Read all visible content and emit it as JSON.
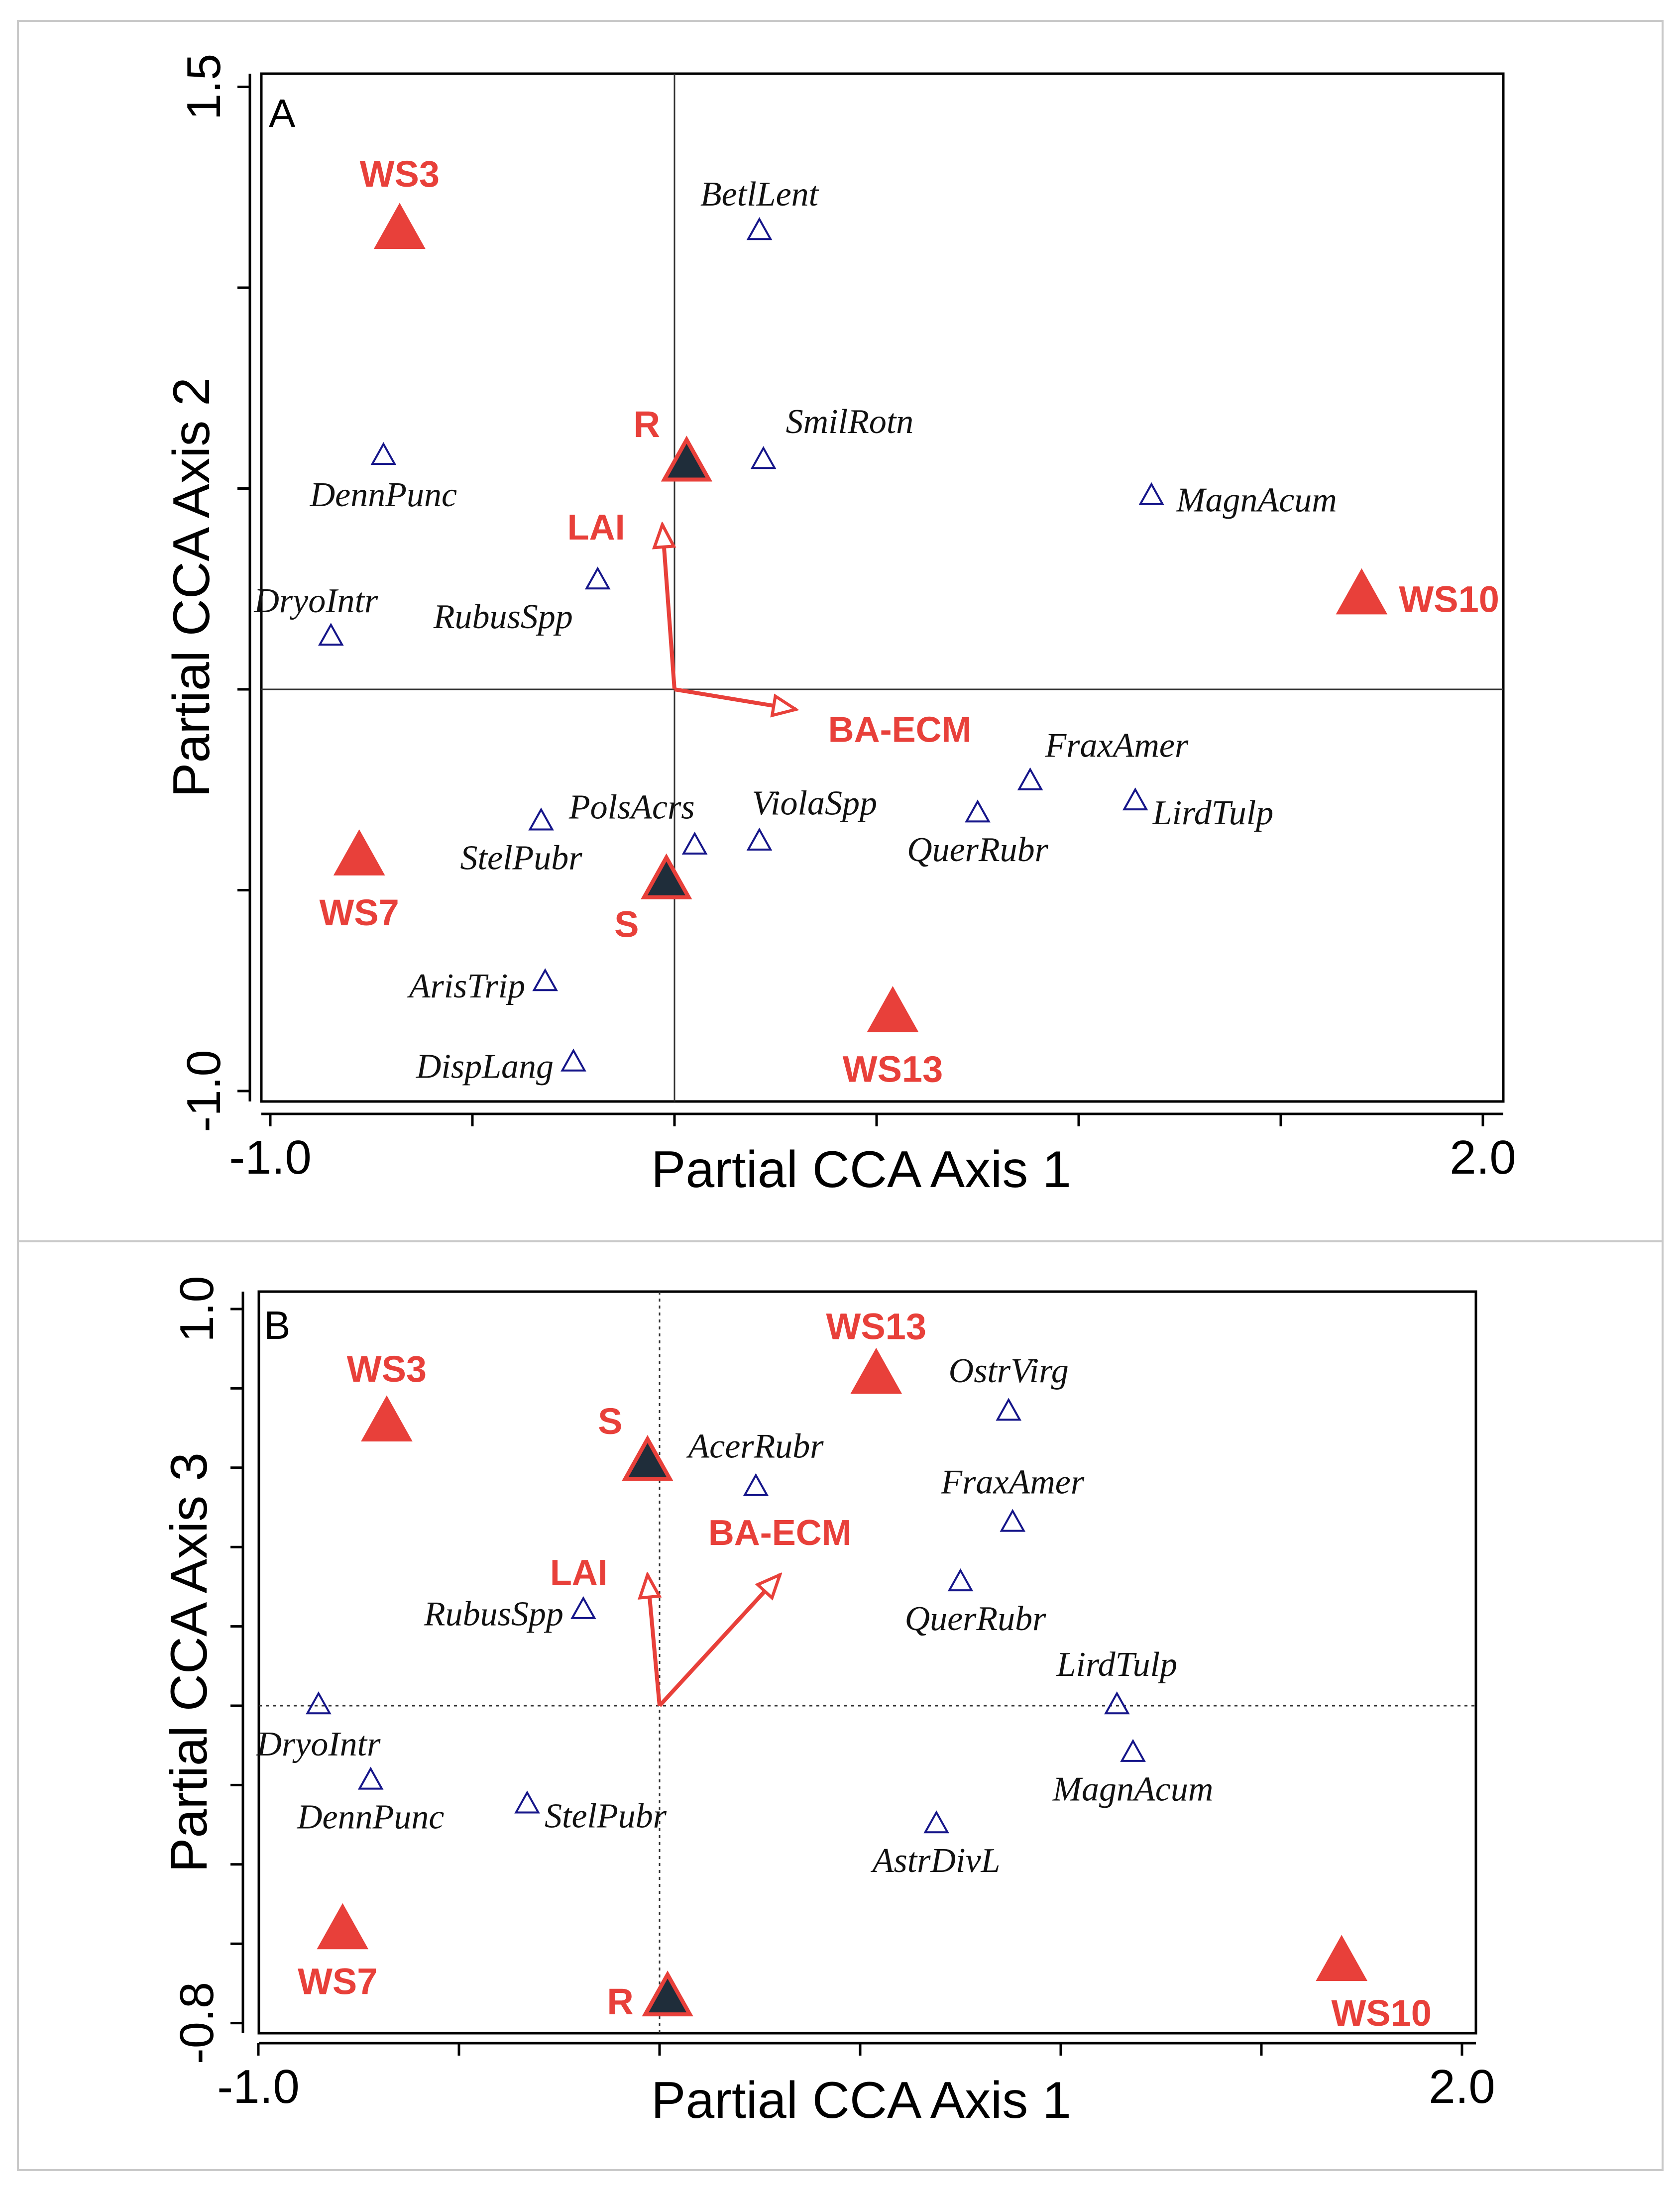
{
  "chart_data": [
    {
      "type": "scatter",
      "panel_label": "A",
      "xlabel": "Partial CCA Axis 1",
      "ylabel": "Partial CCA Axis 2",
      "xlim": [
        -1.0,
        2.0
      ],
      "ylim": [
        -1.0,
        1.5
      ],
      "x_tick_labels": [
        {
          "value": -1.0,
          "label": "-1.0"
        },
        {
          "value": 2.0,
          "label": "2.0"
        }
      ],
      "y_tick_labels": [
        {
          "value": -1.0,
          "label": "-1.0"
        },
        {
          "value": 1.5,
          "label": "1.5"
        }
      ],
      "x_minor_ticks": [
        -1.0,
        -0.5,
        0.0,
        0.5,
        1.0,
        1.5,
        2.0
      ],
      "y_minor_ticks": [
        -1.0,
        -0.5,
        0.0,
        0.5,
        1.0,
        1.5
      ],
      "zero_lines": "solid",
      "species": [
        {
          "name": "BetlLent",
          "x": 0.21,
          "y": 1.14
        },
        {
          "name": "SmilRotn",
          "x": 0.22,
          "y": 0.57
        },
        {
          "name": "DennPunc",
          "x": -0.72,
          "y": 0.58
        },
        {
          "name": "MagnAcum",
          "x": 1.18,
          "y": 0.48
        },
        {
          "name": "RubusSpp",
          "x": -0.19,
          "y": 0.27
        },
        {
          "name": "DryoIntr",
          "x": -0.85,
          "y": 0.13
        },
        {
          "name": "FraxAmer",
          "x": 0.88,
          "y": -0.23
        },
        {
          "name": "LirdTulp",
          "x": 1.14,
          "y": -0.28
        },
        {
          "name": "QuerRubr",
          "x": 0.75,
          "y": -0.31
        },
        {
          "name": "StelPubr",
          "x": -0.33,
          "y": -0.33
        },
        {
          "name": "PolsAcrs",
          "x": 0.05,
          "y": -0.39
        },
        {
          "name": "ViolaSpp",
          "x": 0.21,
          "y": -0.38
        },
        {
          "name": "ArisTrip",
          "x": -0.32,
          "y": -0.73
        },
        {
          "name": "DispLang",
          "x": -0.25,
          "y": -0.93
        }
      ],
      "sites": [
        {
          "name": "WS3",
          "x": -0.68,
          "y": 1.14
        },
        {
          "name": "WS10",
          "x": 1.7,
          "y": 0.23
        },
        {
          "name": "WS7",
          "x": -0.78,
          "y": -0.42
        },
        {
          "name": "WS13",
          "x": 0.54,
          "y": -0.81
        }
      ],
      "treatments": [
        {
          "name": "R",
          "x": 0.03,
          "y": 0.56
        },
        {
          "name": "S",
          "x": -0.02,
          "y": -0.48
        }
      ],
      "vectors": [
        {
          "name": "LAI",
          "x": -0.03,
          "y": 0.41
        },
        {
          "name": "BA-ECM",
          "x": 0.3,
          "y": -0.05
        }
      ],
      "colors": {
        "site": "#e8403a",
        "treatment_fill": "#1f2d3a",
        "species": "#16168a",
        "vector": "#e8403a"
      }
    },
    {
      "type": "scatter",
      "panel_label": "B",
      "xlabel": "Partial CCA Axis 1",
      "ylabel": "Partial CCA Axis 3",
      "xlim": [
        -1.0,
        2.0
      ],
      "ylim": [
        -0.8,
        1.0
      ],
      "x_tick_labels": [
        {
          "value": -1.0,
          "label": "-1.0"
        },
        {
          "value": 2.0,
          "label": "2.0"
        }
      ],
      "y_tick_labels": [
        {
          "value": -0.8,
          "label": "-0.8"
        },
        {
          "value": 1.0,
          "label": "1.0"
        }
      ],
      "x_minor_ticks": [
        -1.0,
        -0.5,
        0.0,
        0.5,
        1.0,
        1.5,
        2.0
      ],
      "y_minor_ticks": [
        -0.8,
        -0.6,
        -0.4,
        -0.2,
        0.0,
        0.2,
        0.4,
        0.6,
        0.8,
        1.0
      ],
      "zero_lines": "dotted",
      "species": [
        {
          "name": "OstrVirg",
          "x": 0.87,
          "y": 0.74
        },
        {
          "name": "AcerRubr",
          "x": 0.24,
          "y": 0.55
        },
        {
          "name": "FraxAmer",
          "x": 0.88,
          "y": 0.46
        },
        {
          "name": "QuerRubr",
          "x": 0.75,
          "y": 0.31
        },
        {
          "name": "RubusSpp",
          "x": -0.19,
          "y": 0.24
        },
        {
          "name": "LirdTulp",
          "x": 1.14,
          "y": 0.0
        },
        {
          "name": "DryoIntr",
          "x": -0.85,
          "y": 0.0
        },
        {
          "name": "MagnAcum",
          "x": 1.18,
          "y": -0.12
        },
        {
          "name": "DennPunc",
          "x": -0.72,
          "y": -0.19
        },
        {
          "name": "StelPubr",
          "x": -0.33,
          "y": -0.25
        },
        {
          "name": "AstrDivL",
          "x": 0.69,
          "y": -0.3
        }
      ],
      "sites": [
        {
          "name": "WS13",
          "x": 0.54,
          "y": 0.83
        },
        {
          "name": "WS3",
          "x": -0.68,
          "y": 0.71
        },
        {
          "name": "WS7",
          "x": -0.79,
          "y": -0.57
        },
        {
          "name": "WS10",
          "x": 1.7,
          "y": -0.65
        }
      ],
      "treatments": [
        {
          "name": "S",
          "x": -0.03,
          "y": 0.61
        },
        {
          "name": "R",
          "x": 0.02,
          "y": -0.74
        }
      ],
      "vectors": [
        {
          "name": "LAI",
          "x": -0.03,
          "y": 0.33
        },
        {
          "name": "BA-ECM",
          "x": 0.3,
          "y": 0.33
        }
      ],
      "colors": {
        "site": "#e8403a",
        "treatment_fill": "#1f2d3a",
        "species": "#16168a",
        "vector": "#e8403a"
      }
    }
  ]
}
